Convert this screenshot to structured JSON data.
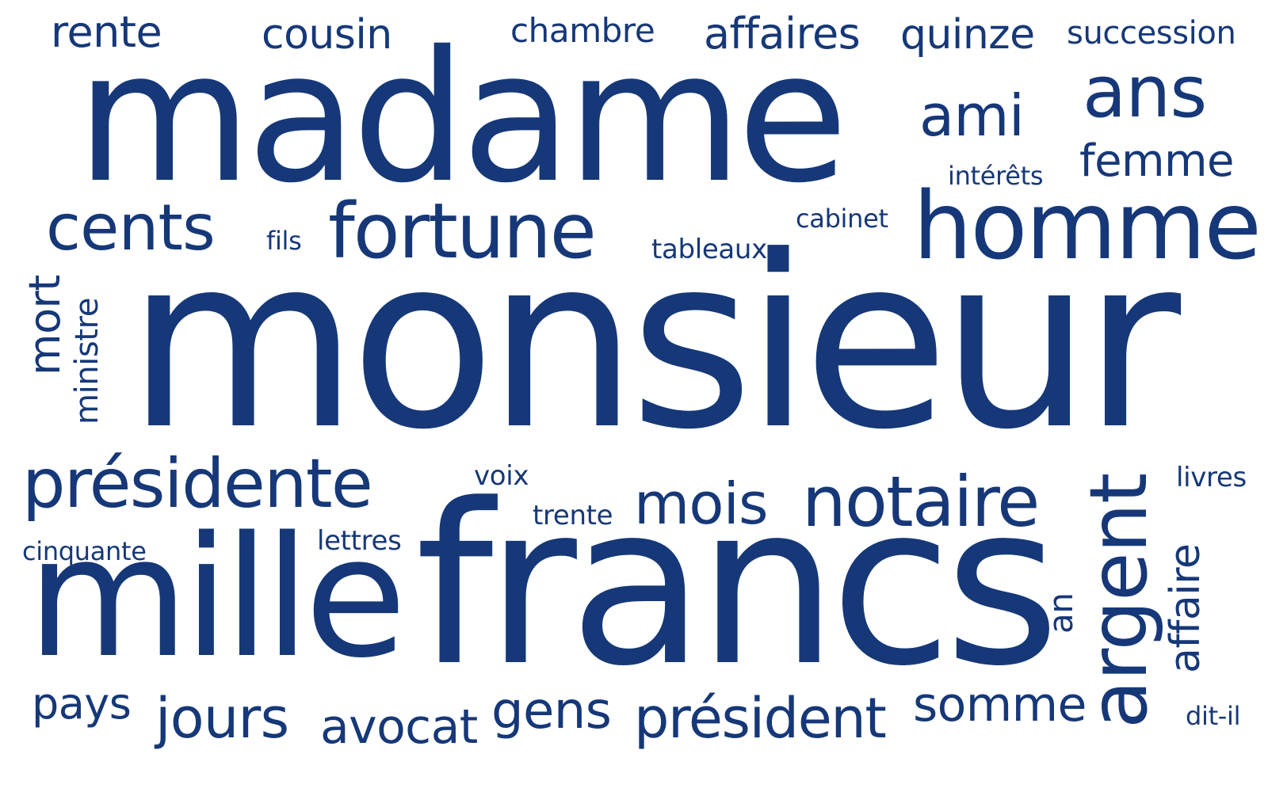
{
  "style": {
    "text_color": "#163878",
    "background": "#ffffff"
  },
  "words": {
    "monsieur": "monsieur",
    "madame": "madame",
    "francs": "francs",
    "mille": "mille",
    "homme": "homme",
    "fortune": "fortune",
    "notaire": "notaire",
    "argent": "argent",
    "ans": "ans",
    "cents": "cents",
    "presidente": "présidente",
    "mois": "mois",
    "ami": "ami",
    "president": "président",
    "femme": "femme",
    "affaires": "affaires",
    "quinze": "quinze",
    "cousin": "cousin",
    "rente": "rente",
    "jours": "jours",
    "gens": "gens",
    "somme": "somme",
    "avocat": "avocat",
    "succession": "succession",
    "chambre": "chambre",
    "mort": "mort",
    "pays": "pays",
    "affaire": "affaire",
    "ministre": "ministre",
    "tableaux": "tableaux",
    "cabinet": "cabinet",
    "interets": "intérêts",
    "voix": "voix",
    "trente": "trente",
    "livres": "livres",
    "lettres": "lettres",
    "cinquante": "cinquante",
    "fils": "fils",
    "an": "an",
    "dit_il": "dit-il"
  }
}
